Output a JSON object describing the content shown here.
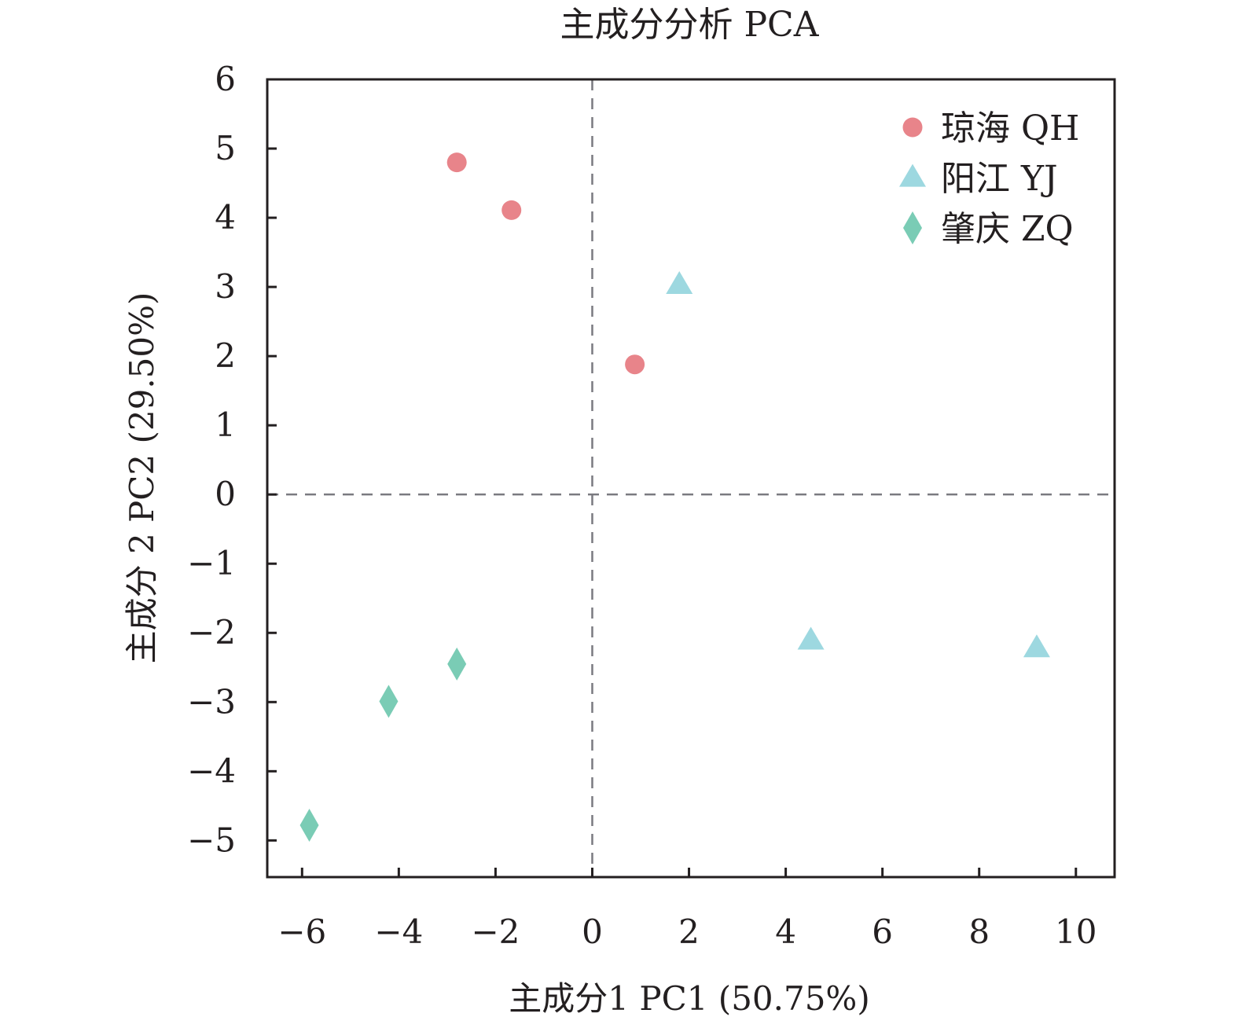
{
  "chart_data": {
    "type": "scatter",
    "title": "主成分分析 PCA",
    "xlabel": "主成分1 PC1 (50.75%)",
    "ylabel": "主成分 2 PC2 (29.50%)",
    "xlim": [
      -6.72,
      10.8
    ],
    "ylim": [
      -5.53,
      6
    ],
    "xticks": [
      -6,
      -4,
      -2,
      0,
      2,
      4,
      6,
      8,
      10
    ],
    "xtick_labels": [
      "−6",
      "−4",
      "−2",
      "0",
      "2",
      "4",
      "6",
      "8",
      "10"
    ],
    "yticks": [
      6,
      5,
      4,
      3,
      2,
      1,
      0,
      -1,
      -2,
      -3,
      -4,
      -5
    ],
    "ytick_labels": [
      "6",
      "5",
      "4",
      "3",
      "2",
      "1",
      "0",
      "−1",
      "−2",
      "−3",
      "−4",
      "−5"
    ],
    "grid": false,
    "reference_lines": {
      "x": 0,
      "y": 0,
      "style": "dashed"
    },
    "legend_position": "top-right",
    "series": [
      {
        "name": "琼海 QH",
        "marker": "circle",
        "color": "#e8848a",
        "points": [
          {
            "x": -2.8,
            "y": 4.8
          },
          {
            "x": -1.67,
            "y": 4.11
          },
          {
            "x": 0.88,
            "y": 1.88
          }
        ]
      },
      {
        "name": "阳江 YJ",
        "marker": "triangle",
        "color": "#9dd8e0",
        "points": [
          {
            "x": 1.8,
            "y": 3.03
          },
          {
            "x": 4.52,
            "y": -2.11
          },
          {
            "x": 9.19,
            "y": -2.22
          }
        ]
      },
      {
        "name": "肇庆 ZQ",
        "marker": "diamond",
        "color": "#7accb5",
        "points": [
          {
            "x": -2.8,
            "y": -2.45
          },
          {
            "x": -4.21,
            "y": -2.99
          },
          {
            "x": -5.85,
            "y": -4.78
          }
        ]
      }
    ]
  }
}
